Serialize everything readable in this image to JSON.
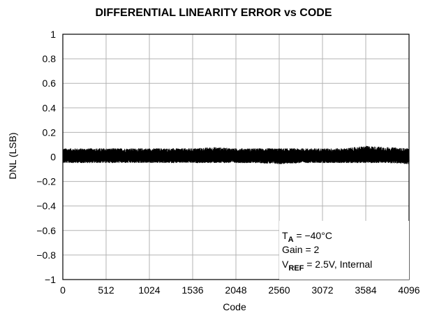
{
  "chart_data": {
    "type": "line",
    "title": "DIFFERENTIAL LINEARITY ERROR vs CODE",
    "xlabel": "Code",
    "ylabel": "DNL (LSB)",
    "xlim": [
      0,
      4096
    ],
    "ylim": [
      -1,
      1
    ],
    "x_ticks": [
      0,
      512,
      1024,
      1536,
      2048,
      2560,
      3072,
      3584,
      4096
    ],
    "x_tick_labels": [
      "0",
      "512",
      "1024",
      "1536",
      "2048",
      "2560",
      "3072",
      "3584",
      "4096"
    ],
    "y_ticks": [
      1,
      0.8,
      0.6,
      0.4,
      0.2,
      0,
      -0.2,
      -0.4,
      -0.6,
      -0.8,
      -1
    ],
    "y_tick_labels": [
      "1",
      "0.8",
      "0.6",
      "0.4",
      "0.2",
      "0",
      "−0.2",
      "−0.4",
      "−0.6",
      "−0.8",
      "−1"
    ],
    "grid": true,
    "series": [
      {
        "color": "#000000",
        "description_range": [
          -0.05,
          0.08
        ],
        "x": [
          0,
          256,
          512,
          768,
          1024,
          1280,
          1536,
          1792,
          2048,
          2304,
          2560,
          2816,
          3072,
          3328,
          3584,
          3840,
          4096
        ],
        "upper": [
          0.07,
          0.07,
          0.07,
          0.07,
          0.07,
          0.07,
          0.07,
          0.08,
          0.07,
          0.07,
          0.07,
          0.07,
          0.07,
          0.07,
          0.09,
          0.08,
          0.07
        ],
        "lower": [
          -0.05,
          -0.05,
          -0.05,
          -0.05,
          -0.05,
          -0.05,
          -0.05,
          -0.05,
          -0.05,
          -0.05,
          -0.06,
          -0.05,
          -0.05,
          -0.05,
          -0.05,
          -0.05,
          -0.06
        ]
      }
    ],
    "annotation": {
      "line1_main": "T",
      "line1_sub": "A",
      "line1_rest": " = −40°C",
      "line2": "Gain = 2",
      "line3_main": "V",
      "line3_sub": "REF",
      "line3_rest": " = 2.5V, Internal",
      "position": "bottom-right"
    }
  }
}
